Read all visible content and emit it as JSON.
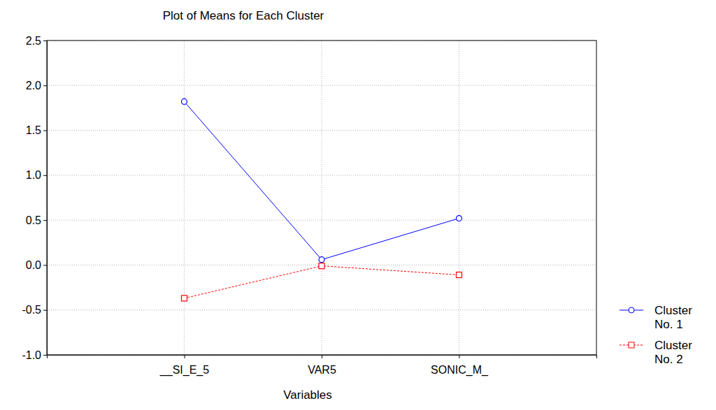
{
  "chart_data": {
    "type": "line",
    "title": "Plot of Means for Each Cluster",
    "x_label": "Variables",
    "categories": [
      "__SI_E_5",
      "VAR5",
      "SONIC_M_"
    ],
    "series": [
      {
        "name": "Cluster No. 1",
        "color": "#0000ff",
        "marker": "circle",
        "line_style": "solid",
        "values": [
          1.82,
          0.06,
          0.52
        ]
      },
      {
        "name": "Cluster No. 2",
        "color": "#ff0000",
        "marker": "square",
        "line_style": "dashed",
        "values": [
          -0.37,
          -0.01,
          -0.11
        ]
      }
    ],
    "ylim": [
      -1.0,
      2.5
    ],
    "yticks": [
      {
        "value": -1.0,
        "label": "-1.0"
      },
      {
        "value": -0.5,
        "label": "-0.5"
      },
      {
        "value": 0,
        "label": "0.0"
      },
      {
        "value": 0.5,
        "label": "0.5"
      },
      {
        "value": 1.0,
        "label": "1.0"
      },
      {
        "value": 1.5,
        "label": "1.5"
      },
      {
        "value": 2.0,
        "label": "2.0"
      },
      {
        "value": 2.5,
        "label": "2.5"
      }
    ],
    "grid": true,
    "legend": "right"
  }
}
